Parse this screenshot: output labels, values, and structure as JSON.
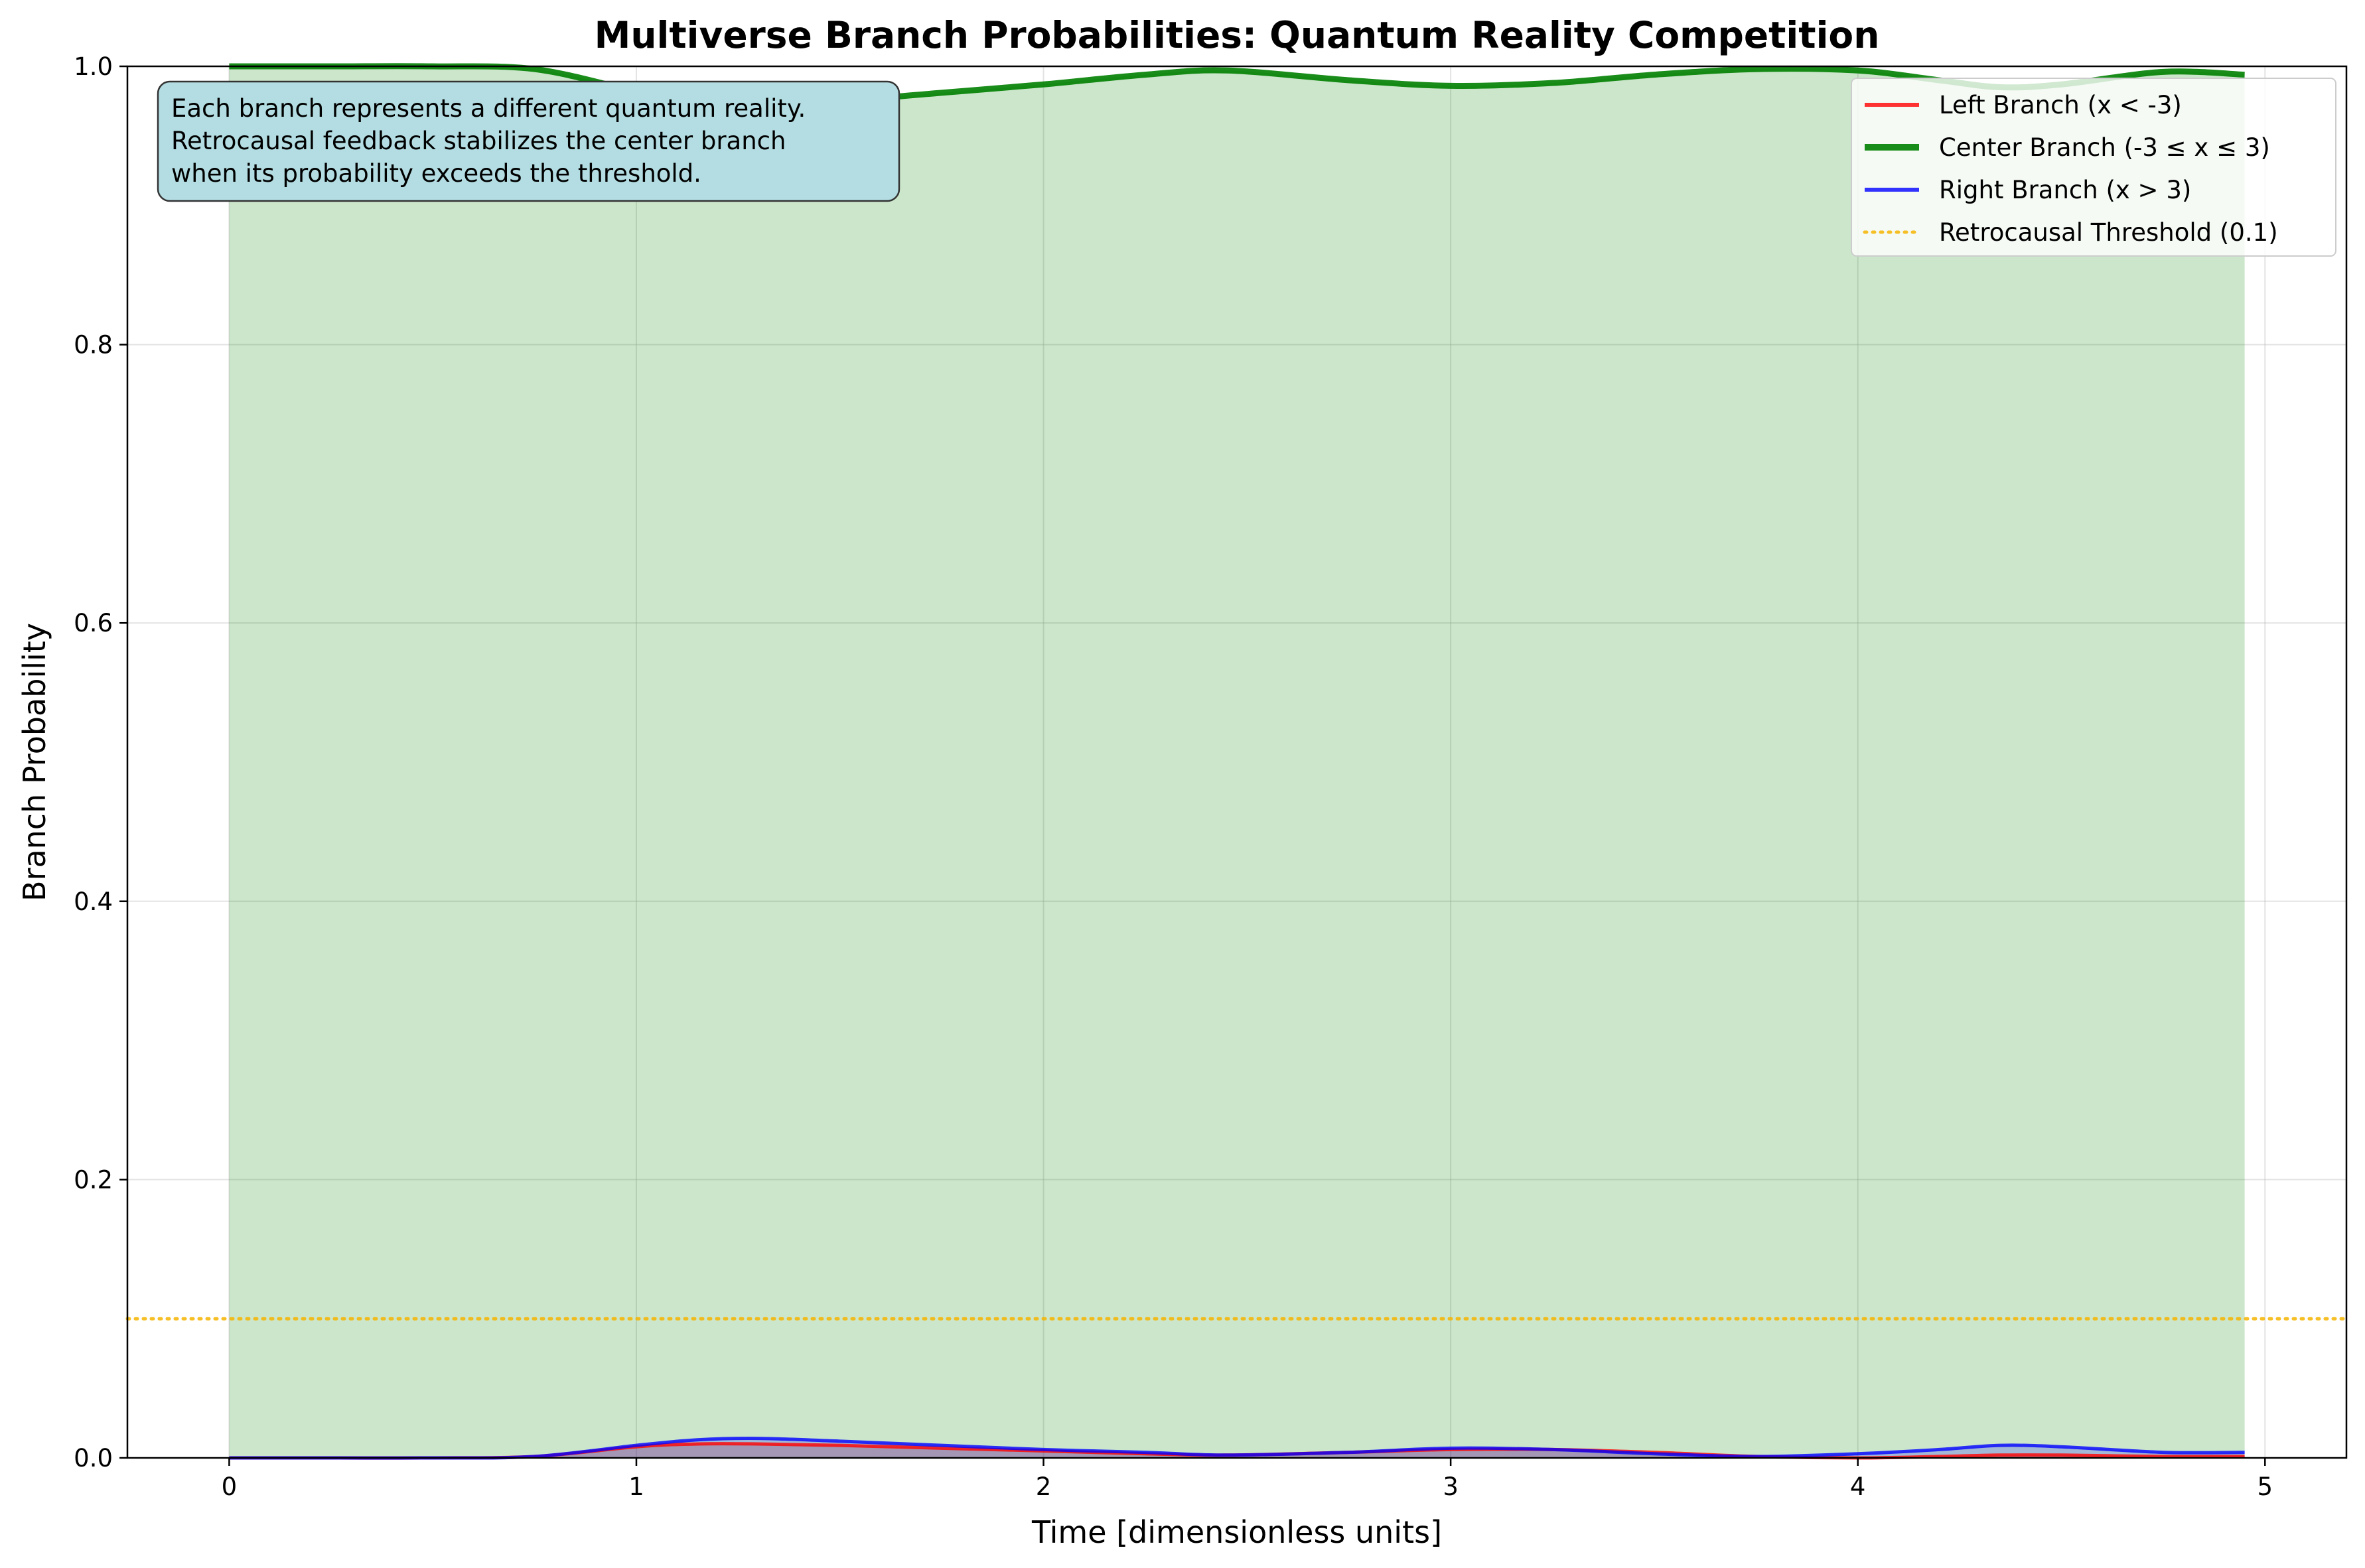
{
  "chart_data": {
    "type": "line",
    "title": "Multiverse Branch Probabilities: Quantum Reality Competition",
    "xlabel": "Time [dimensionless units]",
    "ylabel": "Branch Probability",
    "xlim": [
      -0.25,
      5.2
    ],
    "ylim": [
      0,
      1.0
    ],
    "xticks": [
      0,
      1,
      2,
      3,
      4,
      5
    ],
    "yticks": [
      0.0,
      0.2,
      0.4,
      0.6,
      0.8,
      1.0
    ],
    "grid": true,
    "legend_position": "top-right",
    "x": [
      0,
      0.25,
      0.5,
      0.75,
      1.0,
      1.15,
      1.3,
      1.5,
      1.75,
      2.0,
      2.25,
      2.45,
      2.75,
      3.0,
      3.25,
      3.5,
      3.75,
      4.0,
      4.2,
      4.35,
      4.5,
      4.75,
      4.95
    ],
    "series": [
      {
        "name": "Left Branch (x < -3)",
        "color": "#ff0000",
        "style": "solid",
        "values": [
          0.0,
          0.0,
          0.0,
          0.001,
          0.008,
          0.01,
          0.01,
          0.009,
          0.007,
          0.005,
          0.003,
          0.002,
          0.004,
          0.006,
          0.006,
          0.004,
          0.001,
          0.0,
          0.001,
          0.002,
          0.002,
          0.001,
          0.001
        ]
      },
      {
        "name": "Center Branch (-3 ≤ x ≤ 3)",
        "color": "#008000",
        "style": "solid",
        "values": [
          1.0,
          1.0,
          1.0,
          0.998,
          0.982,
          0.974,
          0.972,
          0.975,
          0.981,
          0.987,
          0.994,
          0.997,
          0.99,
          0.986,
          0.988,
          0.994,
          0.998,
          0.997,
          0.99,
          0.985,
          0.987,
          0.996,
          0.994
        ]
      },
      {
        "name": "Right Branch (x > 3)",
        "color": "#0000ff",
        "style": "solid",
        "values": [
          0.0,
          0.0,
          0.0,
          0.001,
          0.009,
          0.013,
          0.014,
          0.012,
          0.009,
          0.006,
          0.004,
          0.002,
          0.004,
          0.007,
          0.006,
          0.003,
          0.001,
          0.003,
          0.006,
          0.009,
          0.008,
          0.004,
          0.004
        ]
      }
    ],
    "threshold": {
      "name": "Retrocausal Threshold (0.1)",
      "value": 0.1,
      "color": "#f4b400",
      "style": "dotted"
    },
    "annotation": {
      "lines": [
        "Each branch represents a different quantum reality.",
        "Retrocausal feedback stabilizes the center branch",
        "when its probability exceeds the threshold."
      ],
      "position": "top-left",
      "background": "#b3dde2"
    }
  }
}
